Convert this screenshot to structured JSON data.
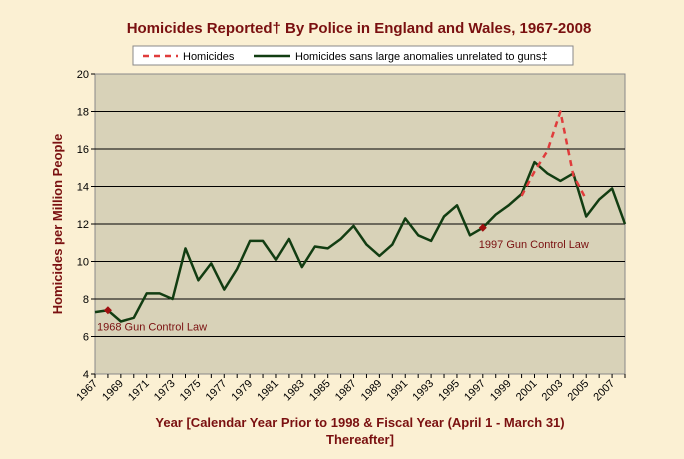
{
  "chart_data": {
    "type": "line",
    "title": "Homicides Reported† By Police in England and Wales, 1967-2008",
    "ylabel": "Homicides per Million People",
    "xlabel_line1": "Year [Calendar Year Prior to 1998 & Fiscal Year (April 1 - March 31)",
    "xlabel_line2": "Thereafter]",
    "ylim": [
      4,
      20
    ],
    "xlim": [
      1967,
      2008
    ],
    "yticks": [
      "4",
      "6",
      "8",
      "10",
      "12",
      "14",
      "16",
      "18",
      "20"
    ],
    "xticks": [
      "1967",
      "1969",
      "1971",
      "1973",
      "1975",
      "1977",
      "1979",
      "1981",
      "1983",
      "1985",
      "1987",
      "1989",
      "1991",
      "1993",
      "1995",
      "1997",
      "1999",
      "2001",
      "2003",
      "2005",
      "2007"
    ],
    "series": [
      {
        "name": "Homicides",
        "style": "dashed",
        "color": "#e03c3c",
        "x": [
          2000,
          2001,
          2002,
          2003,
          2004,
          2005
        ],
        "values": [
          13.5,
          14.8,
          15.9,
          18.0,
          14.6,
          13.3
        ]
      },
      {
        "name": "Homicides sans large anomalies unrelated to guns‡",
        "style": "solid",
        "color": "#123d12",
        "x": [
          1967,
          1968,
          1969,
          1970,
          1971,
          1972,
          1973,
          1974,
          1975,
          1976,
          1977,
          1978,
          1979,
          1980,
          1981,
          1982,
          1983,
          1984,
          1985,
          1986,
          1987,
          1988,
          1989,
          1990,
          1991,
          1992,
          1993,
          1994,
          1995,
          1996,
          1997,
          1998,
          1999,
          2000,
          2001,
          2002,
          2003,
          2004,
          2005,
          2006,
          2007,
          2008
        ],
        "values": [
          7.3,
          7.4,
          6.8,
          7.0,
          8.3,
          8.3,
          8.0,
          10.7,
          9.0,
          9.9,
          8.5,
          9.6,
          11.1,
          11.1,
          10.1,
          11.2,
          9.7,
          10.8,
          10.7,
          11.2,
          11.9,
          10.9,
          10.3,
          10.9,
          12.3,
          11.4,
          11.1,
          12.4,
          13.0,
          11.4,
          11.8,
          12.5,
          13.0,
          13.6,
          15.3,
          14.7,
          14.3,
          14.7,
          12.4,
          13.3,
          13.9,
          12.0
        ]
      }
    ],
    "annotations": [
      {
        "label": "1968 Gun Control Law",
        "x": 1968,
        "y": 7.4
      },
      {
        "label": "1997 Gun Control Law",
        "x": 1997,
        "y": 11.8
      }
    ],
    "legend": "top"
  },
  "colors": {
    "plot_background": "#d8d2b8",
    "page_background": "#fbf0d3",
    "marker": "#a01010"
  }
}
